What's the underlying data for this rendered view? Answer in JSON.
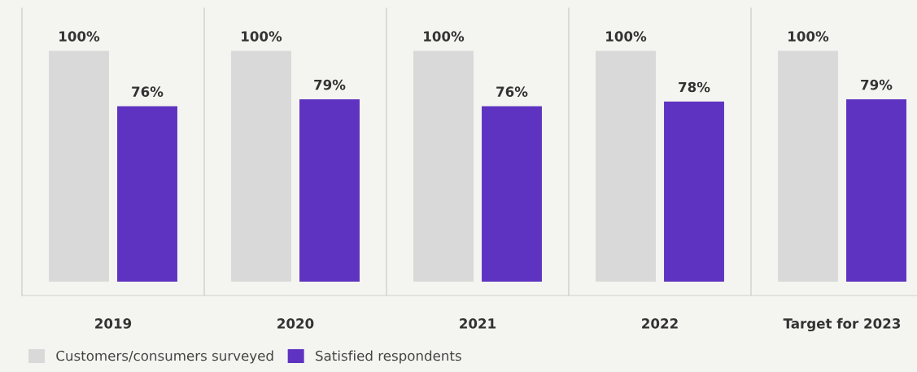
{
  "chart_data": {
    "type": "bar",
    "categories": [
      "2019",
      "2020",
      "2021",
      "2022",
      "Target for 2023"
    ],
    "series": [
      {
        "name": "Customers/consumers surveyed",
        "color": "#d9d9d9",
        "values": [
          100,
          100,
          100,
          100,
          100
        ],
        "value_labels": [
          "100%",
          "100%",
          "100%",
          "100%",
          "100%"
        ]
      },
      {
        "name": "Satisfied respondents",
        "color": "#5f33c1",
        "values": [
          76,
          79,
          76,
          78,
          79
        ],
        "value_labels": [
          "76%",
          "79%",
          "76%",
          "78%",
          "79%"
        ]
      }
    ],
    "legend": "bottom left",
    "grid": false
  }
}
